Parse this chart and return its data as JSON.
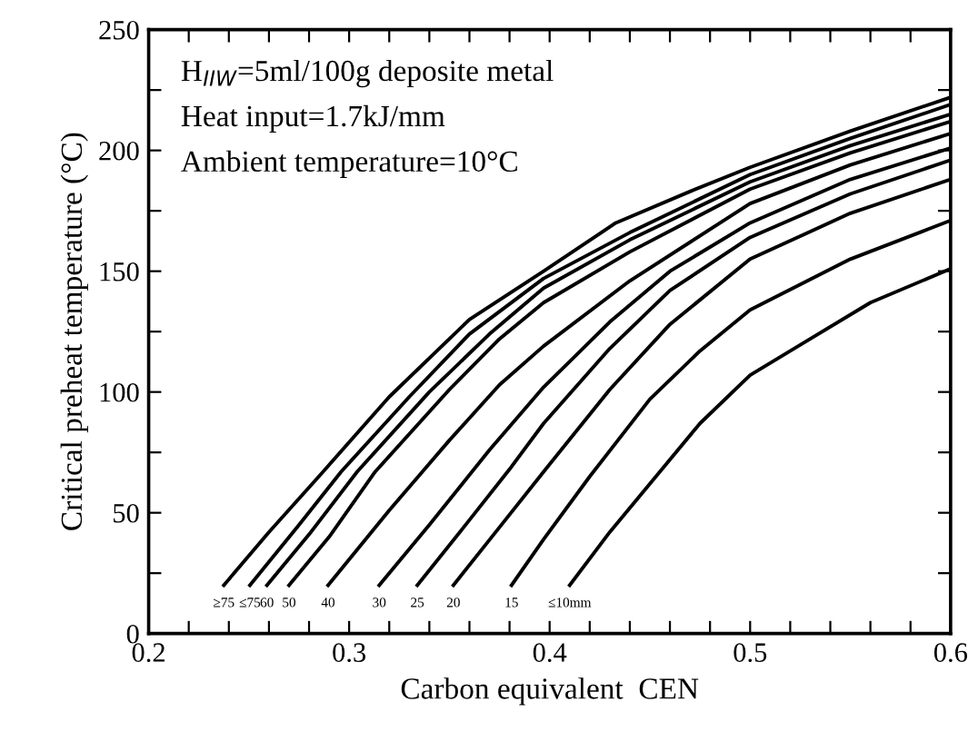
{
  "chart_data": {
    "type": "line",
    "xlabel": "Carbon equivalent  CEN",
    "ylabel": "Critical preheat temperature (°C)",
    "xlim": [
      0.2,
      0.6
    ],
    "ylim": [
      0,
      250
    ],
    "xticks": [
      0.2,
      {
        "value": 0.22,
        "label": null
      },
      {
        "value": 0.24,
        "label": null
      },
      {
        "value": 0.26,
        "label": null
      },
      {
        "value": 0.28,
        "label": null
      },
      0.3,
      {
        "value": 0.32,
        "label": null
      },
      {
        "value": 0.34,
        "label": null
      },
      {
        "value": 0.36,
        "label": null
      },
      {
        "value": 0.38,
        "label": null
      },
      0.4,
      {
        "value": 0.42,
        "label": null
      },
      {
        "value": 0.44,
        "label": null
      },
      {
        "value": 0.46,
        "label": null
      },
      {
        "value": 0.48,
        "label": null
      },
      0.5,
      {
        "value": 0.52,
        "label": null
      },
      {
        "value": 0.54,
        "label": null
      },
      {
        "value": 0.56,
        "label": null
      },
      {
        "value": 0.58,
        "label": null
      },
      0.6
    ],
    "yticks": [
      0,
      {
        "value": 25,
        "label": null
      },
      50,
      {
        "value": 75,
        "label": null
      },
      100,
      {
        "value": 125,
        "label": null
      },
      150,
      {
        "value": 175,
        "label": null
      },
      200,
      {
        "value": 225,
        "label": null
      },
      250
    ],
    "grid": false,
    "legend": false,
    "marker": "none",
    "line_style": "solid",
    "annotations": [
      "H$_{IIW}$=5ml/100g deposite metal",
      "Heat input=1.7kJ/mm",
      "Ambient temperature=10°C"
    ],
    "series": [
      {
        "name": "≥75",
        "color": "#000000",
        "x": [
          0.2375,
          0.26,
          0.287,
          0.32,
          0.36,
          0.397,
          0.433,
          0.47,
          0.5,
          0.55,
          0.6
        ],
        "values": [
          20,
          42,
          67,
          98,
          130,
          150,
          170,
          183,
          193,
          208,
          222
        ]
      },
      {
        "name": "≤75",
        "color": "#000000",
        "x": [
          0.2505,
          0.275,
          0.296,
          0.33,
          0.36,
          0.397,
          0.44,
          0.5,
          0.55,
          0.6
        ],
        "values": [
          20,
          45,
          67,
          98,
          124,
          147,
          166,
          190,
          205,
          219
        ]
      },
      {
        "name": "60",
        "color": "#000000",
        "x": [
          0.259,
          0.28,
          0.304,
          0.34,
          0.37,
          0.397,
          0.44,
          0.5,
          0.55,
          0.6
        ],
        "values": [
          20,
          41,
          67,
          100,
          124,
          143,
          163,
          187,
          202,
          215
        ]
      },
      {
        "name": "50",
        "color": "#000000",
        "x": [
          0.27,
          0.29,
          0.313,
          0.35,
          0.375,
          0.397,
          0.44,
          0.5,
          0.55,
          0.6
        ],
        "values": [
          20,
          40,
          67,
          101,
          122,
          137,
          158,
          184,
          199,
          212
        ]
      },
      {
        "name": "40",
        "color": "#000000",
        "x": [
          0.2895,
          0.32,
          0.35,
          0.375,
          0.397,
          0.44,
          0.5,
          0.55,
          0.6
        ],
        "values": [
          20,
          51,
          80,
          103,
          119,
          146,
          178,
          194,
          207
        ]
      },
      {
        "name": "30",
        "color": "#000000",
        "x": [
          0.315,
          0.34,
          0.37,
          0.397,
          0.43,
          0.46,
          0.5,
          0.55,
          0.6
        ],
        "values": [
          20,
          45,
          76,
          102,
          129,
          150,
          170,
          188,
          201
        ]
      },
      {
        "name": "25",
        "color": "#000000",
        "x": [
          0.334,
          0.36,
          0.38,
          0.397,
          0.43,
          0.46,
          0.5,
          0.55,
          0.6
        ],
        "values": [
          20,
          47,
          68,
          87,
          118,
          142,
          164,
          182,
          196
        ]
      },
      {
        "name": "20",
        "color": "#000000",
        "x": [
          0.352,
          0.375,
          0.397,
          0.43,
          0.46,
          0.5,
          0.55,
          0.6
        ],
        "values": [
          20,
          44,
          67,
          101,
          128,
          155,
          174,
          188
        ]
      },
      {
        "name": "15",
        "color": "#000000",
        "x": [
          0.381,
          0.397,
          0.42,
          0.45,
          0.475,
          0.5,
          0.55,
          0.6
        ],
        "values": [
          20,
          39,
          65,
          97,
          117,
          134,
          155,
          171
        ]
      },
      {
        "name": "≤10mm",
        "color": "#000000",
        "x": [
          0.41,
          0.43,
          0.45,
          0.475,
          0.5,
          0.53,
          0.56,
          0.6
        ],
        "values": [
          20,
          42,
          62,
          87,
          107,
          122,
          137,
          151
        ]
      }
    ]
  }
}
